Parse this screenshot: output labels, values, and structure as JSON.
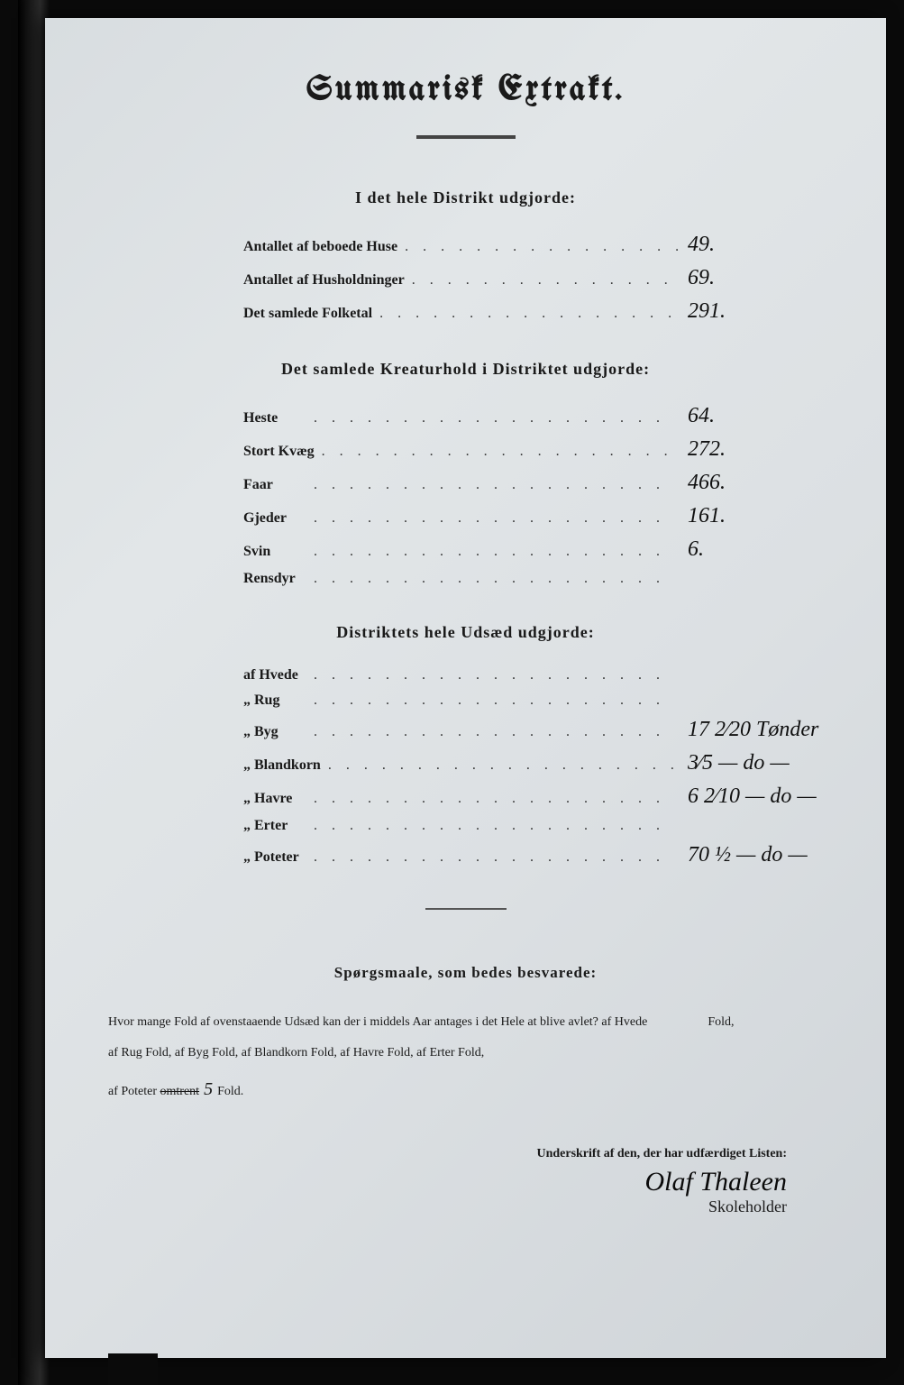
{
  "title": "Summarisk Extrakt.",
  "section1": {
    "heading": "I det hele Distrikt udgjorde:",
    "rows": [
      {
        "label": "Antallet af beboede Huse",
        "value": "49."
      },
      {
        "label": "Antallet af Husholdninger",
        "value": "69."
      },
      {
        "label": "Det samlede Folketal",
        "value": "291."
      }
    ]
  },
  "section2": {
    "heading": "Det samlede Kreaturhold i Distriktet udgjorde:",
    "rows": [
      {
        "label": "Heste",
        "value": "64."
      },
      {
        "label": "Stort Kvæg",
        "value": "272."
      },
      {
        "label": "Faar",
        "value": "466."
      },
      {
        "label": "Gjeder",
        "value": "161."
      },
      {
        "label": "Svin",
        "value": "6."
      },
      {
        "label": "Rensdyr",
        "value": ""
      }
    ]
  },
  "section3": {
    "heading": "Distriktets hele Udsæd udgjorde:",
    "rows": [
      {
        "label": "af Hvede",
        "value": ""
      },
      {
        "label": "„ Rug",
        "value": ""
      },
      {
        "label": "„ Byg",
        "value": "17 2⁄20 Tønder"
      },
      {
        "label": "„ Blandkorn",
        "value": "3⁄5 — do —"
      },
      {
        "label": "„ Havre",
        "value": "6 2⁄10 — do —"
      },
      {
        "label": "„ Erter",
        "value": ""
      },
      {
        "label": "„ Poteter",
        "value": "70 ½ — do —"
      }
    ]
  },
  "questions": {
    "heading": "Spørgsmaale, som bedes besvarede:",
    "line1_a": "Hvor mange Fold af ovenstaaende Udsæd kan der i middels Aar antages i det Hele at blive avlet?   af Hvede",
    "line1_b": "Fold,",
    "line2": "af Rug        Fold,  af Byg         Fold,  af Blandkorn         Fold,  af Havre         Fold,  af Erter         Fold,",
    "line3_a": "af Poteter ",
    "line3_strike": "omtrent",
    "line3_hand": " 5 ",
    "line3_b": "Fold."
  },
  "signature": {
    "label": "Underskrift af den, der har udfærdiget Listen:",
    "name": "Olaf Thaleen",
    "role": "Skoleholder"
  },
  "colors": {
    "paper_bg": "#dce0e3",
    "ink": "#1a1a1a",
    "hand_ink": "#101010",
    "frame": "#0a0a0a"
  },
  "typography": {
    "title_fontsize": 38,
    "section_fontsize": 18,
    "row_fontsize": 16,
    "value_fontsize": 24,
    "question_fontsize": 14,
    "signature_fontsize": 30
  },
  "dots": ". . . . . . . . . . . . . . . . . . . ."
}
